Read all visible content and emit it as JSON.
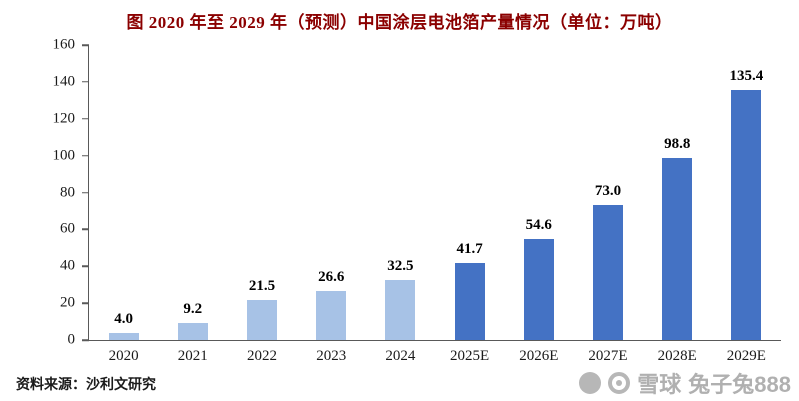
{
  "chart": {
    "title": "图  2020 年至 2029 年（预测）中国涂层电池箔产量情况（单位：万吨）"
  },
  "chart_data": {
    "type": "bar",
    "title": "图 2020年至2029年（预测）中国涂层电池箔产量情况（单位：万吨）",
    "categories": [
      "2020",
      "2021",
      "2022",
      "2023",
      "2024",
      "2025E",
      "2026E",
      "2027E",
      "2028E",
      "2029E"
    ],
    "values": [
      4.0,
      9.2,
      21.5,
      26.6,
      32.5,
      41.7,
      54.6,
      73.0,
      98.8,
      135.4
    ],
    "value_labels": [
      "4.0",
      "9.2",
      "21.5",
      "26.6",
      "32.5",
      "41.7",
      "54.6",
      "73.0",
      "98.8",
      "135.4"
    ],
    "unit": "万吨",
    "ylim": [
      0,
      160
    ],
    "yticks": [
      0,
      20,
      40,
      60,
      80,
      100,
      120,
      140,
      160
    ],
    "grid": false,
    "legend": "none",
    "bar_colors": {
      "historical": "#a7c2e6",
      "forecast": "#4472c4"
    },
    "colors": [
      "#a7c2e6",
      "#a7c2e6",
      "#a7c2e6",
      "#a7c2e6",
      "#a7c2e6",
      "#4472c4",
      "#4472c4",
      "#4472c4",
      "#4472c4",
      "#4472c4"
    ]
  },
  "source": "资料来源：沙利文研究",
  "watermark": {
    "brand": "雪球",
    "username": "兔子兔888"
  }
}
